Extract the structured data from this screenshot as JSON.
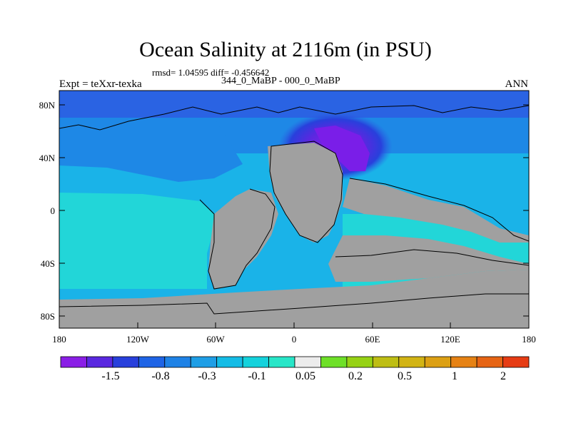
{
  "title": "Ocean Salinity at 2116m (in PSU)",
  "stats": "rmsd= 1.04595 diff= -0.456642",
  "subtitle": "344_0_MaBP - 000_0_MaBP",
  "left_label": "Expt = teXxr-texka",
  "right_label": "ANN",
  "colors": {
    "land": "#a0a0a0",
    "ocean_dark_blue": "#2a63e3",
    "ocean_mid_blue": "#1e88e6",
    "ocean_light_blue": "#1ab3e8",
    "ocean_cyan": "#22d6d8",
    "anomaly_purple": "#7a1ee8"
  },
  "chart_data": {
    "type": "heatmap",
    "projection": "cylindrical-equidistant",
    "lon_range": [
      -180,
      180
    ],
    "lat_range": [
      -90,
      90
    ],
    "x_ticks": [
      "180",
      "120W",
      "60W",
      "0",
      "60E",
      "120E",
      "180"
    ],
    "y_ticks": [
      "80N",
      "40N",
      "0",
      "40S",
      "80S"
    ],
    "colorbar": {
      "labels": [
        "-1.5",
        "-0.8",
        "-0.3",
        "-0.1",
        "0.05",
        "0.2",
        "0.5",
        "1",
        "2"
      ],
      "colors": [
        "#8a1ee6",
        "#5a28e0",
        "#2840dc",
        "#1e64e6",
        "#1e82e6",
        "#1e9ee6",
        "#14bce6",
        "#14d2dc",
        "#28e6c8",
        "#ececec",
        "#6ee028",
        "#96d214",
        "#bebe14",
        "#d2b414",
        "#dca014",
        "#e68214",
        "#e66414",
        "#e63c14"
      ]
    }
  }
}
